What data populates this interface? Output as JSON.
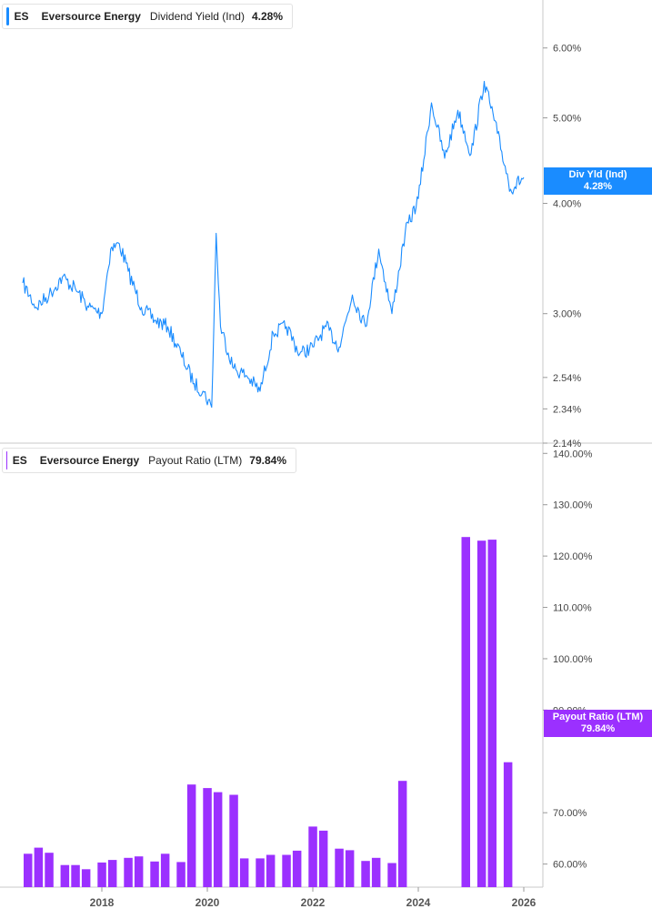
{
  "top_panel": {
    "ticker": "ES",
    "company": "Eversource Energy",
    "metric": "Dividend Yield (Ind)",
    "value": "4.28%",
    "tag_label": "Div Yld (Ind)",
    "tag_value": "4.28%",
    "color": "#1a8cff"
  },
  "bottom_panel": {
    "ticker": "ES",
    "company": "Eversource Energy",
    "metric": "Payout Ratio (LTM)",
    "value": "79.84%",
    "tag_label": "Payout Ratio (LTM)",
    "tag_value": "79.84%",
    "color": "#9b30ff"
  },
  "chart_data": [
    {
      "type": "line",
      "scale": "log",
      "series": [
        {
          "name": "Dividend Yield (Ind)",
          "color": "#1a8cff"
        }
      ],
      "y_ticks": [
        "6.00%",
        "5.00%",
        "4.00%",
        "3.00%",
        "2.54%",
        "2.34%",
        "2.14%"
      ],
      "ylim": [
        2.14,
        6.8
      ],
      "x": [
        "2016-07",
        "2016-10",
        "2017-01",
        "2017-04",
        "2017-07",
        "2017-10",
        "2018-01",
        "2018-03",
        "2018-05",
        "2018-07",
        "2018-10",
        "2019-01",
        "2019-04",
        "2019-07",
        "2019-10",
        "2019-12",
        "2020-02",
        "2020-03",
        "2020-04",
        "2020-07",
        "2020-10",
        "2021-01",
        "2021-04",
        "2021-07",
        "2021-10",
        "2022-01",
        "2022-04",
        "2022-07",
        "2022-10",
        "2023-01",
        "2023-04",
        "2023-07",
        "2023-10",
        "2024-01",
        "2024-04",
        "2024-07",
        "2024-10",
        "2025-01",
        "2025-04",
        "2025-07",
        "2025-10",
        "2026-01"
      ],
      "values": [
        3.25,
        3.05,
        3.15,
        3.3,
        3.2,
        3.05,
        3.0,
        3.55,
        3.6,
        3.35,
        3.05,
        2.95,
        2.9,
        2.7,
        2.5,
        2.45,
        2.35,
        3.7,
        2.9,
        2.6,
        2.55,
        2.45,
        2.85,
        2.9,
        2.7,
        2.75,
        2.9,
        2.75,
        3.15,
        2.9,
        3.55,
        3.0,
        3.7,
        4.05,
        5.2,
        4.5,
        5.1,
        4.55,
        5.5,
        4.8,
        4.15,
        4.28
      ]
    },
    {
      "type": "bar",
      "series": [
        {
          "name": "Payout Ratio (LTM)",
          "color": "#9b30ff"
        }
      ],
      "y_ticks": [
        "140.00%",
        "130.00%",
        "120.00%",
        "110.00%",
        "100.00%",
        "90.00%",
        "70.00%",
        "60.00%"
      ],
      "ylim": [
        55.5,
        142
      ],
      "x_ticks": [
        "2018",
        "2020",
        "2022",
        "2024",
        "2026"
      ],
      "x": [
        2016.6,
        2016.8,
        2017.0,
        2017.3,
        2017.5,
        2017.7,
        2018.0,
        2018.2,
        2018.5,
        2018.7,
        2019.0,
        2019.2,
        2019.5,
        2019.7,
        2020.0,
        2020.2,
        2020.5,
        2020.7,
        2021.0,
        2021.2,
        2021.5,
        2021.7,
        2022.0,
        2022.2,
        2022.5,
        2022.7,
        2023.0,
        2023.2,
        2023.5,
        2023.7,
        2024.9,
        2025.2,
        2025.4,
        2025.7
      ],
      "values": [
        62.0,
        63.2,
        62.2,
        59.8,
        59.8,
        59.0,
        60.3,
        60.8,
        61.2,
        61.5,
        60.5,
        62.0,
        60.4,
        75.5,
        74.8,
        74.0,
        73.5,
        61.1,
        61.1,
        61.8,
        61.8,
        62.6,
        67.3,
        66.5,
        63.0,
        62.7,
        60.6,
        61.2,
        60.2,
        76.2,
        123.7,
        123.0,
        123.2,
        79.84
      ]
    }
  ]
}
